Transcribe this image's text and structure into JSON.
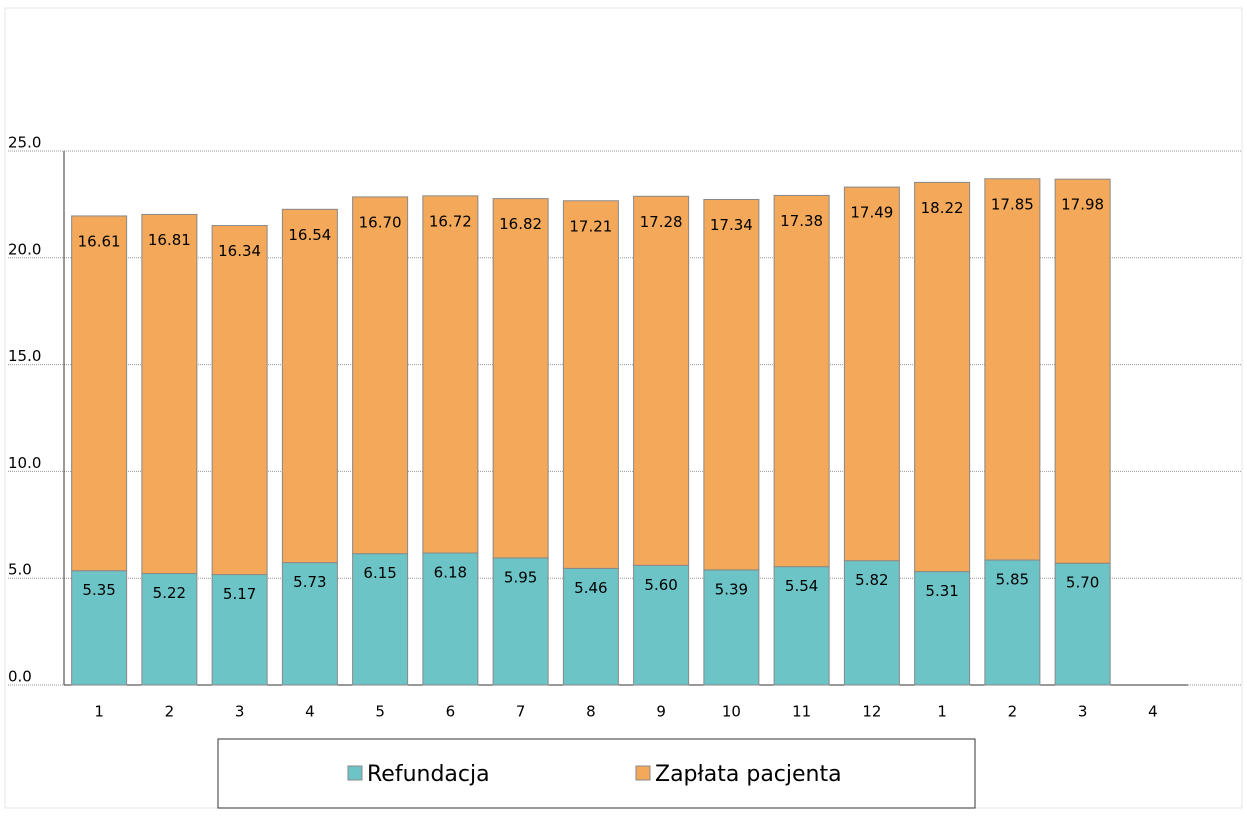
{
  "chart_data": {
    "type": "stacked_bar",
    "categories": [
      "1",
      "2",
      "3",
      "4",
      "5",
      "6",
      "7",
      "8",
      "9",
      "10",
      "11",
      "12",
      "1",
      "2",
      "3",
      "4"
    ],
    "series": [
      {
        "name": "Refundacja",
        "color": "#6cc4c6",
        "values": [
          5.35,
          5.22,
          5.17,
          5.73,
          6.15,
          6.18,
          5.95,
          5.46,
          5.6,
          5.39,
          5.54,
          5.82,
          5.31,
          5.85,
          5.7,
          null
        ],
        "value_labels": [
          "5.35",
          "5.22",
          "5.17",
          "5.73",
          "6.15",
          "6.18",
          "5.95",
          "5.46",
          "5.60",
          "5.39",
          "5.54",
          "5.82",
          "5.31",
          "5.85",
          "5.70",
          null
        ]
      },
      {
        "name": "Zapłata pacjenta",
        "color": "#f4a95a",
        "values": [
          16.61,
          16.81,
          16.34,
          16.54,
          16.7,
          16.72,
          16.82,
          17.21,
          17.28,
          17.34,
          17.38,
          17.49,
          18.22,
          17.85,
          17.98,
          null
        ],
        "value_labels": [
          "16.61",
          "16.81",
          "16.34",
          "16.54",
          "16.70",
          "16.72",
          "16.82",
          "17.21",
          "17.28",
          "17.34",
          "17.38",
          "17.49",
          "18.22",
          "17.85",
          "17.98",
          null
        ]
      }
    ],
    "ylim": [
      0,
      25
    ],
    "yticks": [
      {
        "value": 0,
        "label": "0.0"
      },
      {
        "value": 5,
        "label": "5.0"
      },
      {
        "value": 10,
        "label": "10.0"
      },
      {
        "value": 15,
        "label": "15.0"
      },
      {
        "value": 20,
        "label": "20.0"
      },
      {
        "value": 25,
        "label": "25.0"
      }
    ],
    "grid": true,
    "legend": "bottom"
  }
}
